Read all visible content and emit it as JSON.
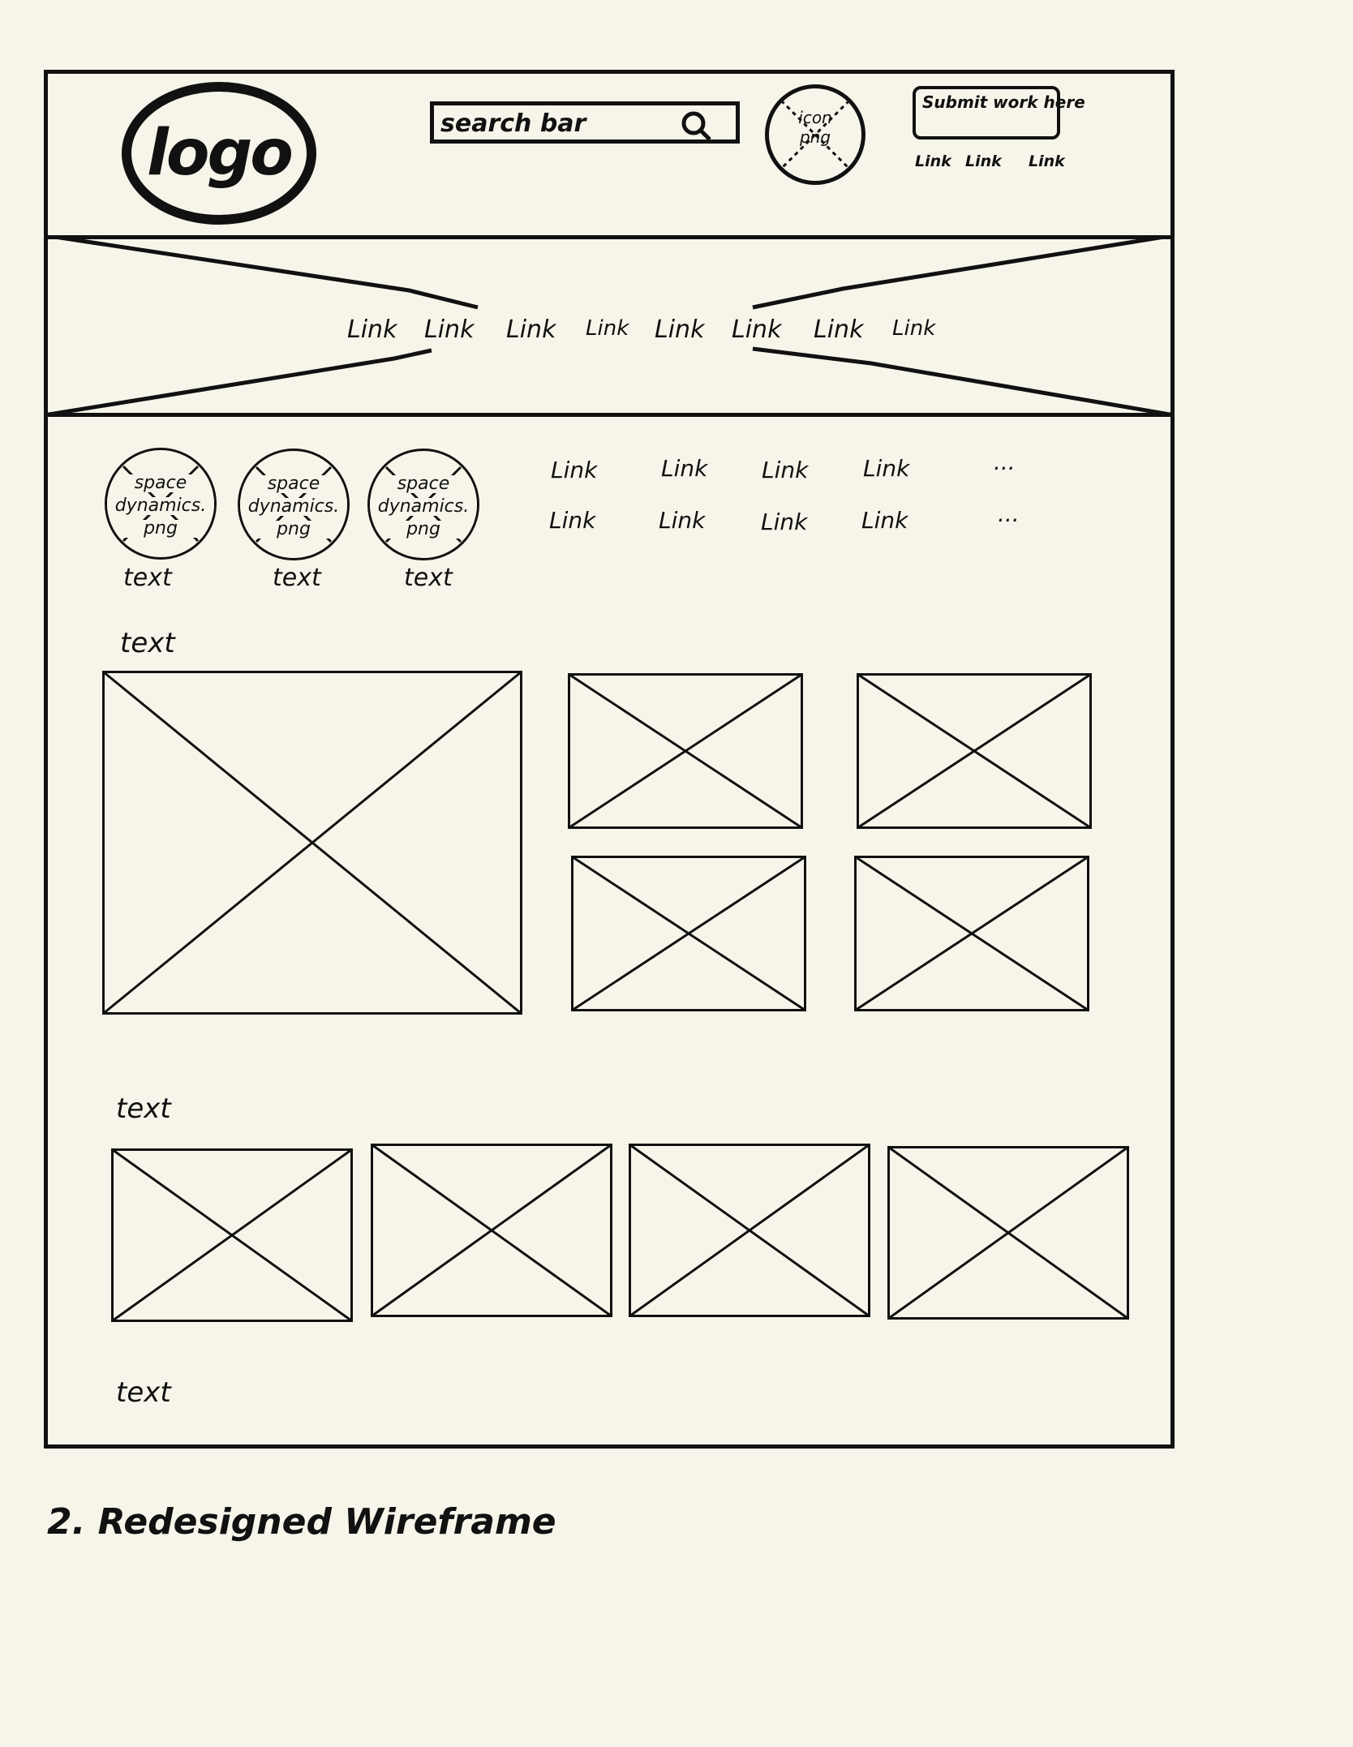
{
  "header": {
    "logo_text": "logo",
    "search_placeholder": "search bar",
    "icon_line1": "icon",
    "icon_line2": "png",
    "submit_button": "Submit work here",
    "links": [
      "Link",
      "Link",
      "Link"
    ]
  },
  "nav": {
    "links": [
      "Link",
      "Link",
      "Link",
      "Link",
      "Link",
      "Link",
      "Link",
      "Link"
    ]
  },
  "categories": {
    "items": [
      {
        "line1": "space",
        "line2": "dynamics.",
        "line3": "png",
        "caption": "text"
      },
      {
        "line1": "space",
        "line2": "dynamics.",
        "line3": "png",
        "caption": "text"
      },
      {
        "line1": "space",
        "line2": "dynamics.",
        "line3": "png",
        "caption": "text"
      }
    ],
    "link_row1": [
      "Link",
      "Link",
      "Link",
      "Link",
      "..."
    ],
    "link_row2": [
      "Link",
      "Link",
      "Link",
      "Link",
      "..."
    ]
  },
  "section1": {
    "heading": "text"
  },
  "section2": {
    "heading": "text"
  },
  "section3": {
    "heading": "text"
  },
  "footer_caption": "2. Redesigned Wireframe",
  "colors": {
    "background": "#f7f5ea",
    "ink": "#111111"
  }
}
